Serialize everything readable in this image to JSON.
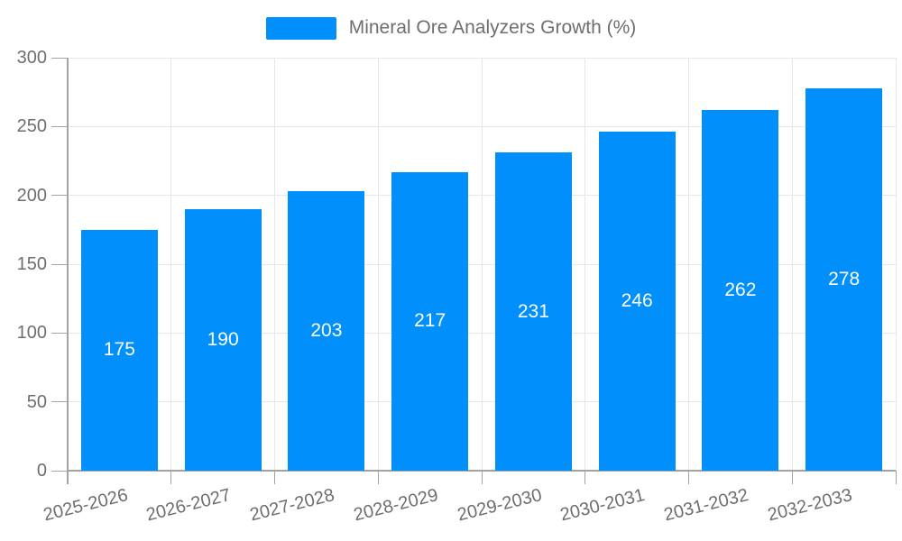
{
  "legend": {
    "label": "Mineral Ore Analyzers Growth (%)",
    "swatch_color": "#008FFB"
  },
  "chart_data": {
    "type": "bar",
    "title": "Mineral Ore Analyzers Growth (%)",
    "categories": [
      "2025-2026",
      "2026-2027",
      "2027-2028",
      "2028-2029",
      "2029-2030",
      "2030-2031",
      "2031-2032",
      "2032-2033"
    ],
    "series": [
      {
        "name": "Mineral Ore Analyzers Growth (%)",
        "values": [
          175,
          190,
          203,
          217,
          231,
          246,
          262,
          278
        ]
      }
    ],
    "value_labels_inside_bars": [
      175,
      190,
      203,
      217,
      231,
      246,
      262,
      278
    ],
    "xlabel": "",
    "ylabel": "",
    "ylim": [
      0,
      300
    ],
    "yticks": [
      0,
      50,
      100,
      150,
      200,
      250,
      300
    ],
    "grid": "on",
    "legend_position": "top",
    "x_label_rotation_deg": -14,
    "colors": {
      "bar": "#008FFB",
      "bar_value_label": "#ffffff",
      "axis_text": "#6e6e6e",
      "gridline": "#e7e7e7",
      "axis_line": "#a3a3a3"
    }
  }
}
